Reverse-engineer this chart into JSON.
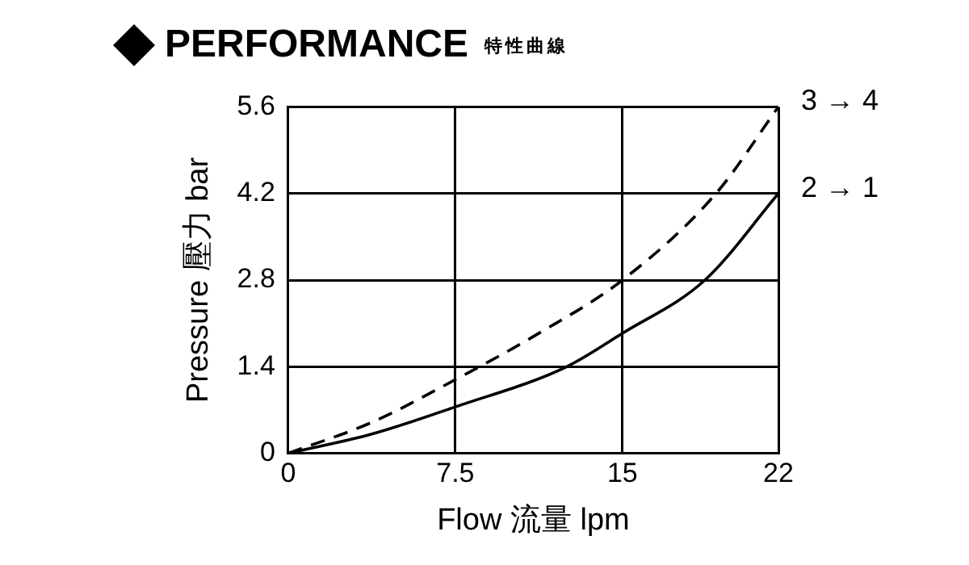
{
  "chart_data": {
    "type": "line",
    "title": "PERFORMANCE",
    "subtitle": "特性曲線",
    "xlabel": "Flow 流量 lpm",
    "ylabel": "Pressure 壓力 bar",
    "xlim": [
      0,
      22
    ],
    "xticks": [
      0,
      7.5,
      15,
      22
    ],
    "ylim": [
      0,
      5.6
    ],
    "yticks": [
      0,
      1.4,
      2.8,
      4.2,
      5.6
    ],
    "grid": true,
    "legend": false,
    "marker": "none",
    "series": [
      {
        "name": "3 → 4",
        "color": "#000000",
        "line_style": "dashed",
        "x": [
          0,
          3.75,
          7.5,
          11.25,
          15,
          19.2,
          22
        ],
        "values": [
          0,
          0.5,
          1.19,
          1.94,
          2.8,
          4.2,
          5.6
        ]
      },
      {
        "name": "2 → 1",
        "color": "#000000",
        "line_style": "solid",
        "x": [
          0,
          3.75,
          7.5,
          12.5,
          15,
          18.7,
          22
        ],
        "values": [
          0,
          0.31,
          0.75,
          1.4,
          1.94,
          2.8,
          4.2
        ]
      }
    ]
  }
}
